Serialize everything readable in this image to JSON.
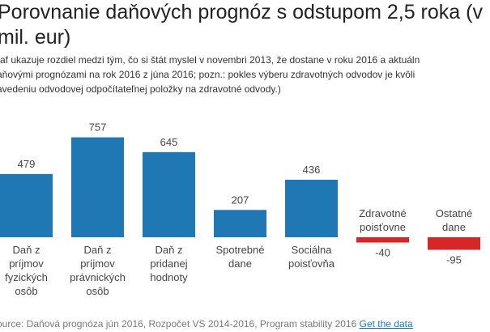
{
  "title": "Porovnanie daňových prognóz s odstupom 2,5 roka (v mil. eur)",
  "description": [
    "raf ukazuje rozdiel medzi tým, čo si štát myslel v novembri 2013, že dostane v roku 2016 a aktuáln",
    "aňovými prognózami na rok 2016 z júna 2016; pozn.: pokles výberu zdravotných odvodov je kvôli",
    "avedeniu odvodovej odpočítateľnej položky na zdravotné odvody.)"
  ],
  "source": "ource: Daňová prognóza jún 2016, Rozpočet VS 2014-2016, Program stability 2016",
  "source_link": "Get the data",
  "chart_data": {
    "type": "bar",
    "categories": [
      "Daň z príjmov fyzických osôb",
      "Daň z príjmov právnických osôb",
      "Daň z pridanej hodnoty",
      "Spotrebné dane",
      "Sociálna poisťovňa",
      "Zdravotné poisťovne",
      "Ostatné dane"
    ],
    "category_lines": [
      [
        "Daň z",
        "príjmov",
        "fyzických",
        "osôb"
      ],
      [
        "Daň z",
        "príjmov",
        "právnických",
        "osôb"
      ],
      [
        "Daň z",
        "pridanej",
        "hodnoty"
      ],
      [
        "Spotrebné",
        "dane"
      ],
      [
        "Sociálna",
        "poisťovňa"
      ],
      [
        "Zdravotné",
        "poisťovne"
      ],
      [
        "Ostatné",
        "dane"
      ]
    ],
    "values": [
      479,
      757,
      645,
      207,
      436,
      -40,
      -95
    ],
    "colors": {
      "positive": "#1f77b4",
      "negative": "#d62728"
    }
  }
}
